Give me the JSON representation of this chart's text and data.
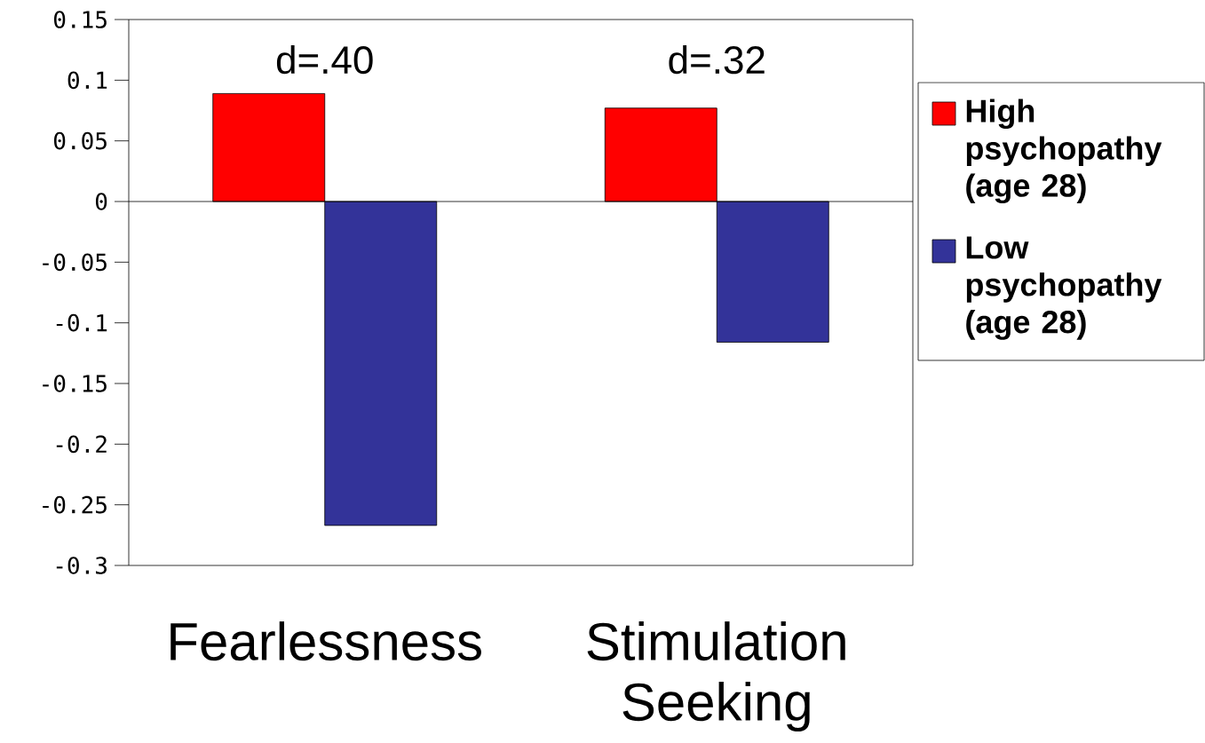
{
  "chart_data": {
    "type": "bar",
    "categories": [
      "Fearlessness",
      "Stimulation Seeking"
    ],
    "series": [
      {
        "name": "High psychopathy (age 28)",
        "color": "#ff0000",
        "values": [
          0.089,
          0.077
        ]
      },
      {
        "name": "Low psychopathy (age 28)",
        "color": "#333399",
        "values": [
          -0.267,
          -0.116
        ]
      }
    ],
    "ylim": [
      -0.3,
      0.15
    ],
    "yticks": [
      -0.3,
      -0.25,
      -0.2,
      -0.15,
      -0.1,
      -0.05,
      0,
      0.05,
      0.1,
      0.15
    ],
    "annotations": [
      "d=.40",
      "d=.32"
    ],
    "legend": "right"
  }
}
